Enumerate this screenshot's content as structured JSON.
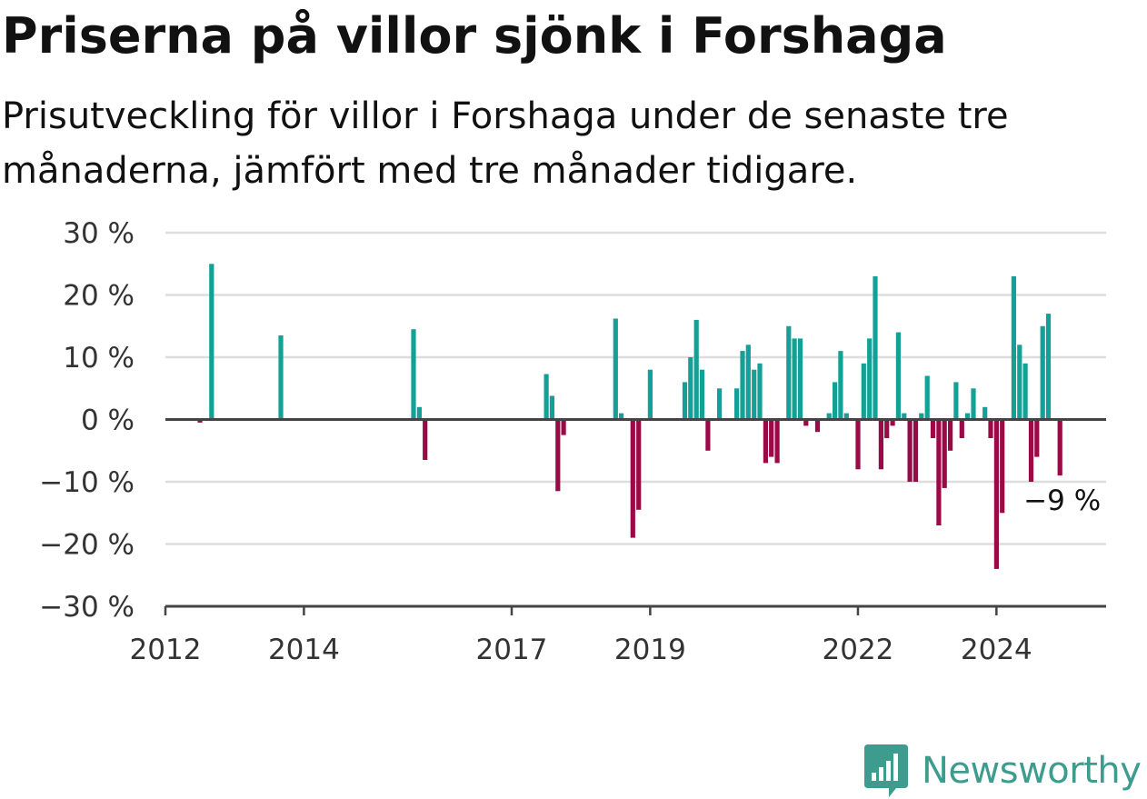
{
  "header": {
    "title": "Priserna på villor sjönk i Forshaga",
    "subtitle": "Prisutveckling för villor i Forshaga under de senaste tre månaderna, jämfört med tre månader tidigare."
  },
  "brand": {
    "name": "Newsworthy",
    "logo_icon": "newsworthy-bar-chart-icon",
    "color": "#3e9c8f"
  },
  "colors": {
    "positive": "#13a096",
    "negative": "#9b0a46",
    "grid": "#dddddd",
    "axis": "#444444"
  },
  "chart_data": {
    "type": "bar",
    "title": "Priserna på villor sjönk i Forshaga",
    "subtitle": "Prisutveckling för villor i Forshaga under de senaste tre månaderna, jämfört med tre månader tidigare.",
    "xlabel": "",
    "ylabel": "",
    "ylim": [
      -30,
      30
    ],
    "yticks": [
      30,
      20,
      10,
      0,
      -10,
      -20,
      -30
    ],
    "ytick_labels": [
      "30 %",
      "20 %",
      "10 %",
      "0 %",
      "−10 %",
      "−20 %",
      "−30 %"
    ],
    "xlim": [
      "2012-01",
      "2025-08"
    ],
    "xticks": [
      "2012-01",
      "2014-01",
      "2017-01",
      "2019-01",
      "2022-01",
      "2024-01"
    ],
    "xtick_labels": [
      "2012",
      "2014",
      "2017",
      "2019",
      "2022",
      "2024"
    ],
    "grid": true,
    "annotation": {
      "text": "−9 %",
      "x": "2024-12",
      "y": -9
    },
    "x": [
      "2012-07",
      "2012-09",
      "2013-09",
      "2015-08",
      "2015-09",
      "2015-10",
      "2017-07",
      "2017-08",
      "2017-09",
      "2017-10",
      "2018-07",
      "2018-08",
      "2018-10",
      "2018-11",
      "2019-01",
      "2019-07",
      "2019-08",
      "2019-09",
      "2019-10",
      "2019-11",
      "2020-01",
      "2020-04",
      "2020-05",
      "2020-06",
      "2020-07",
      "2020-08",
      "2020-09",
      "2020-10",
      "2020-11",
      "2021-01",
      "2021-02",
      "2021-03",
      "2021-04",
      "2021-06",
      "2021-08",
      "2021-09",
      "2021-10",
      "2021-11",
      "2022-01",
      "2022-02",
      "2022-03",
      "2022-04",
      "2022-05",
      "2022-06",
      "2022-07",
      "2022-08",
      "2022-09",
      "2022-10",
      "2022-11",
      "2022-12",
      "2023-01",
      "2023-02",
      "2023-03",
      "2023-04",
      "2023-05",
      "2023-06",
      "2023-07",
      "2023-08",
      "2023-09",
      "2023-11",
      "2023-12",
      "2024-01",
      "2024-02",
      "2024-04",
      "2024-05",
      "2024-06",
      "2024-07",
      "2024-08",
      "2024-09",
      "2024-10",
      "2024-12"
    ],
    "values": [
      -0.5,
      25,
      13.5,
      14.5,
      2,
      -6.5,
      7.3,
      3.8,
      -11.5,
      -2.5,
      16.2,
      1,
      -19,
      -14.5,
      8,
      6,
      10,
      16,
      8,
      -5,
      5,
      5,
      11,
      12,
      8,
      9,
      -7,
      -6,
      -7,
      15,
      13,
      13,
      -1,
      -2,
      1,
      6,
      11,
      1,
      -8,
      9,
      13,
      23,
      -8,
      -3,
      -1,
      14,
      1,
      -10,
      -10,
      1,
      7,
      -3,
      -17,
      -11,
      -5,
      6,
      -3,
      1,
      5,
      2,
      -3,
      -24,
      -15,
      23,
      12,
      9,
      -10,
      -6,
      15,
      17,
      -9
    ]
  }
}
